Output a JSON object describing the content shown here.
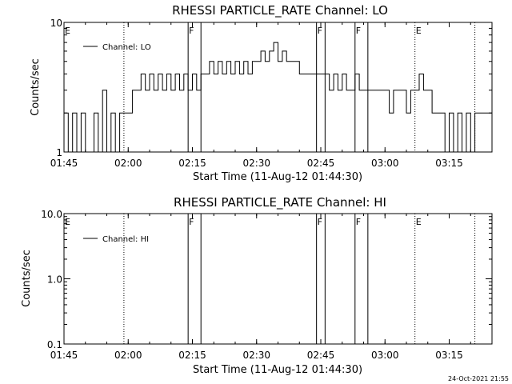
{
  "chart_data": [
    {
      "type": "line",
      "title": "RHESSI PARTICLE_RATE Channel: LO",
      "xlabel": "Start Time (11-Aug-12 01:44:30)",
      "ylabel": "Counts/sec",
      "y_scale": "log",
      "xlim": [
        "01:45",
        "03:25"
      ],
      "ylim": [
        1,
        10
      ],
      "x_ticks": [
        "01:45",
        "02:00",
        "02:15",
        "02:30",
        "02:45",
        "03:00",
        "03:15"
      ],
      "y_ticks": [
        "1",
        "10"
      ],
      "legend": {
        "label": "Channel: LO",
        "placement": "top-left"
      },
      "series": [
        {
          "name": "Channel: LO",
          "x": [
            "01:45",
            "01:46",
            "01:47",
            "01:48",
            "01:49",
            "01:50",
            "01:51",
            "01:52",
            "01:53",
            "01:54",
            "01:55",
            "01:56",
            "01:57",
            "01:58",
            "01:59",
            "02:00",
            "02:01",
            "02:02",
            "02:03",
            "02:04",
            "02:05",
            "02:06",
            "02:07",
            "02:08",
            "02:09",
            "02:10",
            "02:11",
            "02:12",
            "02:13",
            "02:14",
            "02:15",
            "02:16",
            "02:17",
            "02:18",
            "02:19",
            "02:20",
            "02:21",
            "02:22",
            "02:23",
            "02:24",
            "02:25",
            "02:26",
            "02:27",
            "02:28",
            "02:29",
            "02:30",
            "02:31",
            "02:32",
            "02:33",
            "02:34",
            "02:35",
            "02:36",
            "02:37",
            "02:38",
            "02:39",
            "02:40",
            "02:41",
            "02:42",
            "02:43",
            "02:44",
            "02:45",
            "02:46",
            "02:47",
            "02:48",
            "02:49",
            "02:50",
            "02:51",
            "02:52",
            "02:53",
            "02:54",
            "02:55",
            "02:56",
            "02:57",
            "02:58",
            "02:59",
            "03:00",
            "03:01",
            "03:02",
            "03:03",
            "03:04",
            "03:05",
            "03:06",
            "03:07",
            "03:08",
            "03:09",
            "03:10",
            "03:11",
            "03:12",
            "03:13",
            "03:14",
            "03:15",
            "03:16",
            "03:17",
            "03:18",
            "03:19",
            "03:20",
            "03:21",
            "03:22",
            "03:23",
            "03:24",
            "03:25"
          ],
          "values": [
            2,
            1,
            2,
            1,
            2,
            1,
            1,
            2,
            1,
            3,
            1,
            2,
            1,
            2,
            2,
            2,
            3,
            3,
            4,
            3,
            4,
            3,
            4,
            3,
            4,
            3,
            4,
            3,
            4,
            3,
            4,
            3,
            4,
            4,
            5,
            4,
            5,
            4,
            5,
            4,
            5,
            4,
            5,
            4,
            5,
            5,
            6,
            5,
            6,
            7,
            5,
            6,
            5,
            5,
            5,
            4,
            4,
            4,
            4,
            4,
            4,
            4,
            3,
            4,
            3,
            4,
            3,
            3,
            4,
            3,
            3,
            3,
            3,
            3,
            3,
            3,
            2,
            3,
            3,
            3,
            2,
            3,
            3,
            4,
            3,
            3,
            2,
            2,
            2,
            1,
            2,
            1,
            2,
            1,
            2,
            1,
            2,
            2,
            2,
            2,
            2
          ]
        }
      ],
      "markers": [
        {
          "time": "01:45",
          "label": "E",
          "style": "solid"
        },
        {
          "time": "01:59",
          "label": "",
          "style": "dotted"
        },
        {
          "time": "02:14",
          "label": "F",
          "style": "solid"
        },
        {
          "time": "02:17",
          "label": "",
          "style": "solid"
        },
        {
          "time": "02:44",
          "label": "F",
          "style": "solid"
        },
        {
          "time": "02:46",
          "label": "",
          "style": "solid"
        },
        {
          "time": "02:53",
          "label": "F",
          "style": "solid"
        },
        {
          "time": "02:56",
          "label": "",
          "style": "solid"
        },
        {
          "time": "03:07",
          "label": "E",
          "style": "dotted"
        },
        {
          "time": "03:21",
          "label": "",
          "style": "dotted"
        }
      ]
    },
    {
      "type": "line",
      "title": "RHESSI PARTICLE_RATE Channel: HI",
      "xlabel": "Start Time (11-Aug-12 01:44:30)",
      "ylabel": "Counts/sec",
      "y_scale": "log",
      "xlim": [
        "01:45",
        "03:25"
      ],
      "ylim": [
        0.1,
        10
      ],
      "x_ticks": [
        "01:45",
        "02:00",
        "02:15",
        "02:30",
        "02:45",
        "03:00",
        "03:15"
      ],
      "y_ticks": [
        "0.1",
        "1.0",
        "10.0"
      ],
      "legend": {
        "label": "Channel: HI",
        "placement": "top-left"
      },
      "series": [
        {
          "name": "Channel: HI",
          "x": [],
          "values": []
        }
      ],
      "markers": [
        {
          "time": "01:45",
          "label": "E",
          "style": "solid"
        },
        {
          "time": "01:59",
          "label": "",
          "style": "dotted"
        },
        {
          "time": "02:14",
          "label": "F",
          "style": "solid"
        },
        {
          "time": "02:17",
          "label": "",
          "style": "solid"
        },
        {
          "time": "02:44",
          "label": "F",
          "style": "solid"
        },
        {
          "time": "02:46",
          "label": "",
          "style": "solid"
        },
        {
          "time": "02:53",
          "label": "F",
          "style": "solid"
        },
        {
          "time": "02:56",
          "label": "",
          "style": "solid"
        },
        {
          "time": "03:07",
          "label": "E",
          "style": "dotted"
        },
        {
          "time": "03:21",
          "label": "",
          "style": "dotted"
        }
      ]
    }
  ],
  "footer": {
    "timestamp": "24-Oct-2021 21:55"
  }
}
